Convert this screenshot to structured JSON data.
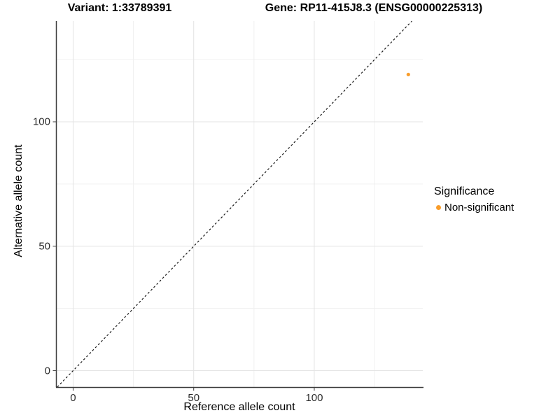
{
  "titles": {
    "variant": "Variant: 1:33789391",
    "gene": "Gene: RP11-415J8.3 (ENSG00000225313)"
  },
  "chart_data": {
    "type": "scatter",
    "xlabel": "Reference allele count",
    "ylabel": "Alternative allele count",
    "xlim": [
      -7.1,
      145.0
    ],
    "ylim": [
      -6.6,
      140.5
    ],
    "x_major_ticks": [
      0,
      50,
      100
    ],
    "y_major_ticks": [
      0,
      50,
      100
    ],
    "x_minor_gridlines": [
      25,
      75,
      125
    ],
    "y_minor_gridlines": [
      25,
      75,
      125
    ],
    "grid": true,
    "points": [
      {
        "x": 139,
        "y": 119,
        "series": "Non-significant"
      }
    ],
    "identity_line": {
      "equation": "y = x",
      "style": "dashed"
    },
    "legend": {
      "title": "Significance",
      "position": "right",
      "items": [
        {
          "label": "Non-significant",
          "color": "#F99D2B"
        }
      ]
    },
    "colors": {
      "point": "#F99D2B",
      "axis_line": "#3c3c3c",
      "major_grid": "#e3e3e3",
      "minor_grid": "#f0f0f0",
      "identity_line": "#1a1a1a",
      "tick_mark": "#3c3c3c"
    }
  }
}
